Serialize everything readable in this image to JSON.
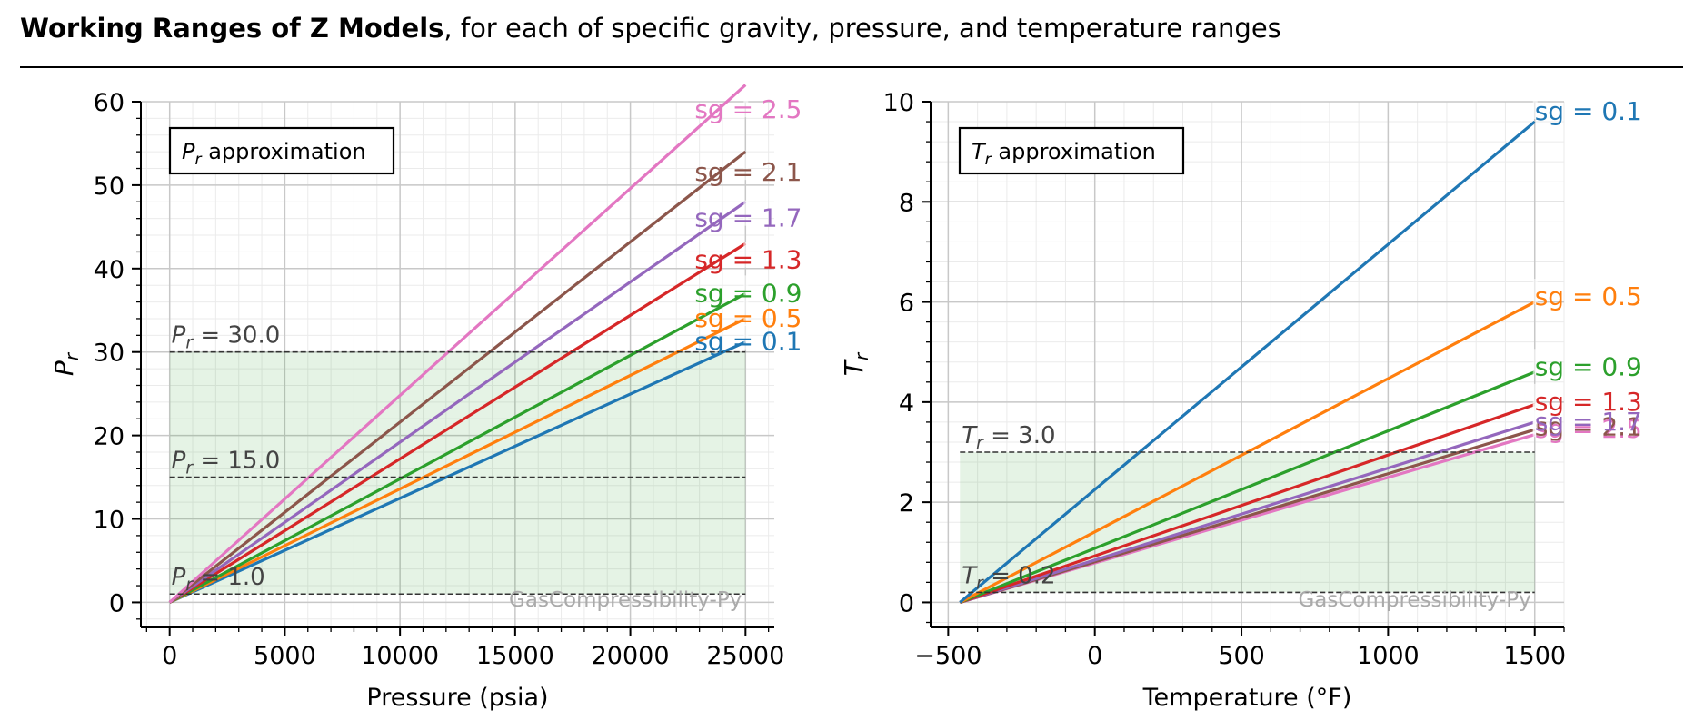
{
  "header": {
    "title_bold": "Working Ranges of Z Models",
    "title_rest": ",  for each of specific gravity, pressure, and  temperature ranges"
  },
  "chart_data": [
    {
      "type": "line",
      "approx_label": "approximation",
      "approx_symbol": "P",
      "symbol_sub": "r",
      "xlabel": "Pressure (psia)",
      "ylabel_symbol": "P",
      "ylabel_sub": "r",
      "xlim": [
        -1250,
        26250
      ],
      "ylim": [
        -3,
        60
      ],
      "xticks": [
        0,
        5000,
        10000,
        15000,
        20000,
        25000
      ],
      "xtick_labels": [
        "0",
        "5000",
        "10000",
        "15000",
        "20000",
        "25000"
      ],
      "yticks": [
        0,
        10,
        20,
        30,
        40,
        50,
        60
      ],
      "ytick_labels": [
        "0",
        "10",
        "20",
        "30",
        "40",
        "50",
        "60"
      ],
      "series": [
        {
          "name": "sg = 0.1",
          "color": "#1f77b4",
          "x": [
            0,
            25000
          ],
          "y": [
            0,
            31.2
          ]
        },
        {
          "name": "sg = 0.5",
          "color": "#ff7f0e",
          "x": [
            0,
            25000
          ],
          "y": [
            0,
            34.0
          ]
        },
        {
          "name": "sg = 0.9",
          "color": "#2ca02c",
          "x": [
            0,
            25000
          ],
          "y": [
            0,
            37.0
          ]
        },
        {
          "name": "sg = 1.3",
          "color": "#d62728",
          "x": [
            0,
            25000
          ],
          "y": [
            0,
            43.0
          ]
        },
        {
          "name": "sg = 1.7",
          "color": "#9467bd",
          "x": [
            0,
            25000
          ],
          "y": [
            0,
            48.0
          ]
        },
        {
          "name": "sg = 2.1",
          "color": "#8c564b",
          "x": [
            0,
            25000
          ],
          "y": [
            0,
            54.0
          ]
        },
        {
          "name": "sg = 2.5",
          "color": "#e377c2",
          "x": [
            0,
            25000
          ],
          "y": [
            0,
            62.0
          ]
        }
      ],
      "label_values": [
        31.2,
        34.0,
        37.0,
        41.0,
        46.0,
        51.5,
        59.0
      ],
      "hlines": [
        {
          "value": 30,
          "text": "= 30.0"
        },
        {
          "value": 15,
          "text": "= 15.0"
        },
        {
          "value": 1,
          "text": "= 1.0"
        }
      ],
      "shade": {
        "x0": 0,
        "x1": 25000,
        "y0": 1,
        "y1": 30
      },
      "watermark": "GasCompressibility-Py"
    },
    {
      "type": "line",
      "approx_label": "approximation",
      "approx_symbol": "T",
      "symbol_sub": "r",
      "xlabel": "Temperature (°F)",
      "ylabel_symbol": "T",
      "ylabel_sub": "r",
      "xlim": [
        -560,
        1600
      ],
      "ylim": [
        -0.5,
        10
      ],
      "xticks": [
        -500,
        0,
        500,
        1000,
        1500
      ],
      "xtick_labels": [
        "−500",
        "0",
        "500",
        "1000",
        "1500"
      ],
      "yticks": [
        0,
        2,
        4,
        6,
        8,
        10
      ],
      "ytick_labels": [
        "0",
        "2",
        "4",
        "6",
        "8",
        "10"
      ],
      "series": [
        {
          "name": "sg = 2.5",
          "color": "#e377c2",
          "x": [
            -460,
            1500
          ],
          "y": [
            0,
            3.35
          ]
        },
        {
          "name": "sg = 2.1",
          "color": "#8c564b",
          "x": [
            -460,
            1500
          ],
          "y": [
            0,
            3.45
          ]
        },
        {
          "name": "sg = 1.7",
          "color": "#9467bd",
          "x": [
            -460,
            1500
          ],
          "y": [
            0,
            3.6
          ]
        },
        {
          "name": "sg = 1.3",
          "color": "#d62728",
          "x": [
            -460,
            1500
          ],
          "y": [
            0,
            3.95
          ]
        },
        {
          "name": "sg = 0.9",
          "color": "#2ca02c",
          "x": [
            -460,
            1500
          ],
          "y": [
            0,
            4.6
          ]
        },
        {
          "name": "sg = 0.5",
          "color": "#ff7f0e",
          "x": [
            -460,
            1500
          ],
          "y": [
            0,
            6.0
          ]
        },
        {
          "name": "sg = 0.1",
          "color": "#1f77b4",
          "x": [
            -460,
            1500
          ],
          "y": [
            0,
            9.6
          ]
        }
      ],
      "label_values": [
        3.45,
        3.5,
        3.6,
        4.0,
        4.7,
        6.1,
        9.8
      ],
      "hlines": [
        {
          "value": 3,
          "text": "= 3.0"
        },
        {
          "value": 0.2,
          "text": "= 0.2"
        }
      ],
      "shade": {
        "x0": -460,
        "x1": 1500,
        "y0": 0.2,
        "y1": 3.0
      },
      "watermark": "GasCompressibility-Py"
    }
  ]
}
